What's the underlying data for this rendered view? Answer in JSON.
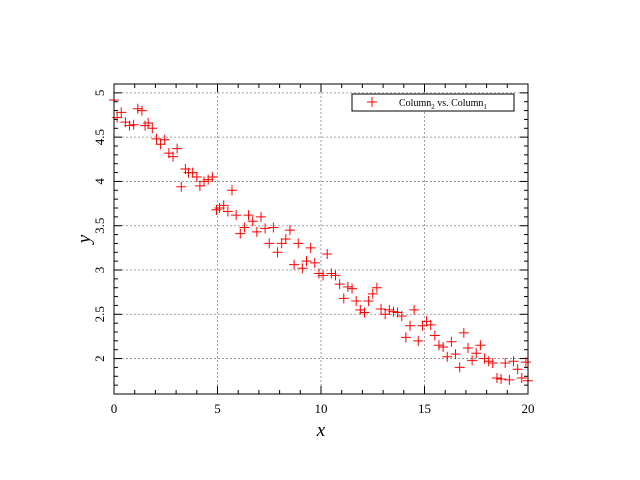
{
  "chart_data": {
    "type": "scatter",
    "title": "",
    "xlabel": "x",
    "ylabel": "y",
    "xlim": [
      0,
      20
    ],
    "ylim": [
      1.6,
      5.1
    ],
    "grid": true,
    "legend_placement": "top-right",
    "marker": "cross",
    "series_color": "#ff0000",
    "xticks": [
      "0",
      "5",
      "10",
      "15",
      "20"
    ],
    "yticks": [
      "2",
      "2.5",
      "3",
      "3.5",
      "4",
      "4.5",
      "5"
    ],
    "legend": {
      "label_main": "Column",
      "label_sub1": "2",
      "label_vs": " vs. Column",
      "label_sub2": "1"
    },
    "series": [
      {
        "x": [
          0.0,
          0.15,
          0.35,
          0.55,
          0.75,
          0.95,
          1.15,
          1.35,
          1.5,
          1.65,
          1.85,
          2.05,
          2.25,
          2.45,
          2.65,
          2.85,
          3.05,
          3.25,
          3.45,
          3.6,
          3.8,
          4.0,
          4.15,
          4.35,
          4.55,
          4.75,
          4.95,
          5.1,
          5.3,
          5.5,
          5.7,
          5.9,
          6.1,
          6.3,
          6.5,
          6.7,
          6.9,
          7.1,
          7.3,
          7.5,
          7.7,
          7.9,
          8.1,
          8.3,
          8.5,
          8.7,
          8.9,
          9.1,
          9.3,
          9.5,
          9.7,
          9.9,
          10.1,
          10.3,
          10.5,
          10.7,
          10.9,
          11.1,
          11.3,
          11.5,
          11.7,
          11.9,
          12.1,
          12.3,
          12.5,
          12.7,
          12.9,
          13.1,
          13.3,
          13.5,
          13.7,
          13.9,
          14.1,
          14.3,
          14.5,
          14.7,
          14.9,
          15.1,
          15.3,
          15.5,
          15.7,
          15.9,
          16.1,
          16.3,
          16.5,
          16.7,
          16.9,
          17.1,
          17.3,
          17.5,
          17.7,
          17.9,
          18.1,
          18.3,
          18.5,
          18.7,
          18.9,
          19.1,
          19.3,
          19.5,
          19.7,
          19.9,
          20.0
        ],
        "y": [
          4.92,
          4.72,
          4.78,
          4.67,
          4.63,
          4.64,
          4.82,
          4.8,
          4.63,
          4.66,
          4.6,
          4.48,
          4.42,
          4.47,
          4.32,
          4.28,
          4.37,
          3.94,
          4.14,
          4.1,
          4.1,
          4.05,
          3.95,
          4.0,
          4.02,
          4.05,
          3.68,
          3.7,
          3.73,
          3.66,
          3.9,
          3.62,
          3.41,
          3.48,
          3.62,
          3.55,
          3.43,
          3.6,
          3.47,
          3.3,
          3.48,
          3.2,
          3.3,
          3.35,
          3.45,
          3.06,
          3.3,
          3.02,
          3.1,
          3.25,
          3.08,
          2.96,
          2.94,
          3.18,
          2.96,
          2.94,
          2.84,
          2.68,
          2.81,
          2.79,
          2.65,
          2.55,
          2.52,
          2.65,
          2.73,
          2.8,
          2.56,
          2.5,
          2.55,
          2.53,
          2.52,
          2.48,
          2.24,
          2.37,
          2.55,
          2.2,
          2.37,
          2.42,
          2.38,
          2.26,
          2.15,
          2.13,
          2.02,
          2.19,
          2.05,
          1.9,
          2.29,
          2.12,
          1.98,
          2.06,
          2.15,
          2.0,
          1.97,
          1.95,
          1.78,
          1.77,
          1.95,
          1.76,
          1.97,
          1.88,
          1.78,
          1.96,
          1.75
        ]
      }
    ]
  }
}
